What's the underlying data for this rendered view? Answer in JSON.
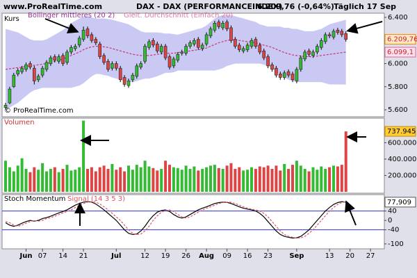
{
  "header": {
    "site": "www.ProRealTime.com",
    "instrument": "DAX - DAX (PERFORMANCEINDEX)",
    "quote": "6.209,76 (-0,64%)",
    "period": "Täglich 17 Sep"
  },
  "chart_data": [
    {
      "type": "candlestick",
      "title": "Kurs",
      "watermark": "© ProRealTime.com",
      "up_color": "#33bb33",
      "down_color": "#dd4444",
      "open": [
        5620,
        5660,
        5800,
        5910,
        5930,
        5950,
        6000,
        5960,
        5860,
        5900,
        5950,
        6000,
        6060,
        6020,
        6070,
        6010,
        6100,
        6130,
        6160,
        6210,
        6300,
        6250,
        6210,
        6170,
        6070,
        6020,
        5960,
        6000,
        5960,
        5880,
        5810,
        5860,
        5890,
        5970,
        6020,
        6140,
        6200,
        6170,
        6100,
        6150,
        6060,
        5980,
        6030,
        6090,
        6090,
        6150,
        6170,
        6210,
        6130,
        6170,
        6240,
        6290,
        6360,
        6310,
        6360,
        6310,
        6210,
        6160,
        6110,
        6120,
        6150,
        6210,
        6160,
        6110,
        6060,
        5990,
        5960,
        5910,
        5880,
        5930,
        5910,
        5850,
        5950,
        6040,
        6110,
        6070,
        6100,
        6140,
        6190,
        6250,
        6230,
        6290,
        6280,
        6260
      ],
      "high": [
        5660,
        5800,
        5920,
        5960,
        5980,
        6010,
        6020,
        5980,
        5910,
        5980,
        6030,
        6070,
        6080,
        6080,
        6090,
        6120,
        6160,
        6170,
        6240,
        6320,
        6320,
        6270,
        6230,
        6190,
        6090,
        6040,
        6020,
        6020,
        5980,
        5900,
        5870,
        5920,
        6000,
        6020,
        6170,
        6210,
        6220,
        6190,
        6170,
        6170,
        6080,
        6060,
        6100,
        6120,
        6170,
        6200,
        6220,
        6230,
        6180,
        6270,
        6320,
        6370,
        6380,
        6370,
        6380,
        6330,
        6230,
        6180,
        6150,
        6180,
        6220,
        6230,
        6180,
        6130,
        6080,
        6010,
        5980,
        5930,
        5940,
        5950,
        5930,
        5970,
        6070,
        6120,
        6130,
        6120,
        6170,
        6220,
        6270,
        6270,
        6300,
        6310,
        6300,
        6280
      ],
      "low": [
        5600,
        5650,
        5790,
        5890,
        5910,
        5930,
        5950,
        5820,
        5840,
        5880,
        5930,
        5980,
        6010,
        6000,
        5980,
        5990,
        6080,
        6110,
        6140,
        6190,
        6220,
        6180,
        6160,
        6040,
        5990,
        5930,
        5940,
        5940,
        5840,
        5800,
        5790,
        5840,
        5870,
        5950,
        6000,
        6120,
        6140,
        6090,
        6080,
        6030,
        5950,
        5960,
        6010,
        6070,
        6070,
        6130,
        6150,
        6120,
        6110,
        6150,
        6220,
        6270,
        6300,
        6290,
        6280,
        6180,
        6130,
        6100,
        6090,
        6100,
        6130,
        6130,
        6080,
        6030,
        5960,
        5930,
        5880,
        5860,
        5860,
        5880,
        5840,
        5830,
        5930,
        6020,
        6060,
        6050,
        6080,
        6120,
        6170,
        6220,
        6210,
        6250,
        6230,
        6190
      ],
      "close": [
        5640,
        5780,
        5900,
        5940,
        5960,
        5990,
        5970,
        5850,
        5890,
        5960,
        6010,
        6050,
        6030,
        6060,
        6000,
        6100,
        6140,
        6150,
        6220,
        6290,
        6240,
        6200,
        6180,
        6060,
        6010,
        5950,
        6000,
        5960,
        5860,
        5820,
        5850,
        5900,
        5980,
        6000,
        6150,
        6190,
        6160,
        6110,
        6150,
        6050,
        5970,
        6040,
        6080,
        6100,
        6150,
        6180,
        6200,
        6140,
        6160,
        6250,
        6300,
        6350,
        6320,
        6350,
        6300,
        6200,
        6150,
        6120,
        6130,
        6160,
        6200,
        6150,
        6100,
        6050,
        5980,
        5950,
        5900,
        5880,
        5920,
        5900,
        5860,
        5950,
        6050,
        6100,
        6080,
        6100,
        6150,
        6200,
        6250,
        6240,
        6280,
        6270,
        6250,
        6209.76
      ],
      "last_label": "6.209,76",
      "band": {
        "name": "Bollinger mittleres (20 2)",
        "color": "#c9c9f3",
        "upper": [
          6300,
          6290,
          6280,
          6270,
          6250,
          6230,
          6210,
          6200,
          6200,
          6200,
          6210,
          6230,
          6250,
          6270,
          6290,
          6320,
          6350,
          6370,
          6390,
          6410,
          6410,
          6400,
          6390,
          6390,
          6390,
          6385,
          6380,
          6370,
          6360,
          6350,
          6340,
          6320,
          6300,
          6280,
          6270,
          6270,
          6270,
          6270,
          6265,
          6260,
          6260,
          6255,
          6250,
          6260,
          6270,
          6280,
          6290,
          6300,
          6310,
          6330,
          6360,
          6390,
          6410,
          6420,
          6420,
          6420,
          6410,
          6400,
          6390,
          6380,
          6370,
          6360,
          6340,
          6330,
          6320,
          6320,
          6320,
          6320,
          6310,
          6310,
          6300,
          6300,
          6290,
          6280,
          6280,
          6280,
          6290,
          6300,
          6320,
          6340,
          6350,
          6360,
          6370,
          6380
        ],
        "lower": [
          5600,
          5620,
          5640,
          5660,
          5690,
          5720,
          5750,
          5770,
          5780,
          5790,
          5790,
          5790,
          5790,
          5790,
          5790,
          5790,
          5790,
          5800,
          5810,
          5830,
          5860,
          5890,
          5910,
          5910,
          5900,
          5895,
          5880,
          5870,
          5860,
          5850,
          5840,
          5840,
          5850,
          5860,
          5870,
          5870,
          5880,
          5890,
          5905,
          5920,
          5920,
          5925,
          5940,
          5940,
          5940,
          5940,
          5940,
          5940,
          5940,
          5940,
          5940,
          5940,
          5950,
          5960,
          5980,
          5990,
          6000,
          6000,
          6000,
          6000,
          6000,
          6000,
          6000,
          5990,
          5980,
          5960,
          5930,
          5900,
          5880,
          5860,
          5850,
          5840,
          5840,
          5840,
          5840,
          5840,
          5840,
          5840,
          5830,
          5820,
          5820,
          5820,
          5820,
          5818
        ]
      },
      "series": [
        {
          "name": "Gleit. Durchschnitt (Einfach 20)",
          "color": "#cc3377",
          "dashed": true,
          "last_label": "6.099,1",
          "values": [
            5950,
            5955,
            5960,
            5965,
            5970,
            5975,
            5980,
            5985,
            5990,
            5995,
            6000,
            6010,
            6020,
            6030,
            6040,
            6055,
            6070,
            6085,
            6100,
            6120,
            6135,
            6145,
            6150,
            6150,
            6145,
            6140,
            6130,
            6120,
            6110,
            6100,
            6090,
            6080,
            6075,
            6070,
            6070,
            6070,
            6075,
            6080,
            6085,
            6090,
            6090,
            6090,
            6095,
            6100,
            6105,
            6110,
            6115,
            6120,
            6125,
            6135,
            6150,
            6165,
            6180,
            6190,
            6200,
            6205,
            6205,
            6200,
            6195,
            6190,
            6185,
            6180,
            6170,
            6160,
            6150,
            6140,
            6125,
            6110,
            6095,
            6085,
            6075,
            6070,
            6065,
            6060,
            6060,
            6060,
            6065,
            6070,
            6075,
            6080,
            6085,
            6090,
            6095,
            6099.1
          ]
        }
      ],
      "ylim": [
        5540,
        6436
      ],
      "yticks": [
        {
          "value": 5600,
          "label": "5.600"
        },
        {
          "value": 5800,
          "label": "5.800"
        },
        {
          "value": 6000,
          "label": "6.000"
        },
        {
          "value": 6200,
          "label": "6.200"
        },
        {
          "value": 6400,
          "label": "6.400"
        }
      ]
    },
    {
      "type": "bar",
      "title": "Volumen",
      "last_label": "737.945",
      "values": [
        380000,
        300000,
        250000,
        320000,
        410000,
        280000,
        240000,
        300000,
        270000,
        350000,
        250000,
        280000,
        300000,
        240000,
        280000,
        330000,
        260000,
        270000,
        300000,
        870000,
        280000,
        300000,
        250000,
        300000,
        320000,
        280000,
        340000,
        270000,
        300000,
        250000,
        320000,
        270000,
        330000,
        300000,
        380000,
        310000,
        290000,
        260000,
        280000,
        380000,
        330000,
        300000,
        290000,
        270000,
        320000,
        280000,
        310000,
        260000,
        280000,
        300000,
        320000,
        330000,
        290000,
        280000,
        320000,
        350000,
        280000,
        300000,
        260000,
        270000,
        300000,
        280000,
        310000,
        300000,
        320000,
        280000,
        320000,
        260000,
        340000,
        280000,
        330000,
        380000,
        320000,
        280000,
        250000,
        300000,
        270000,
        310000,
        280000,
        300000,
        320000,
        310000,
        330000,
        737945
      ],
      "ylim": [
        0,
        900000
      ],
      "yticks": [
        {
          "value": 200000,
          "label": "200.000"
        },
        {
          "value": 400000,
          "label": "400.000"
        },
        {
          "value": 600000,
          "label": "600.000"
        }
      ]
    },
    {
      "type": "line",
      "last_label": "77,909",
      "series": [
        {
          "name": "Stoch Momentum",
          "color": "#000000",
          "dashed": false,
          "values": [
            -10,
            -20,
            -25,
            -20,
            -12,
            -5,
            0,
            -3,
            0,
            8,
            12,
            18,
            25,
            32,
            38,
            45,
            55,
            65,
            72,
            78,
            80,
            78,
            70,
            58,
            45,
            30,
            15,
            0,
            -20,
            -40,
            -55,
            -60,
            -58,
            -45,
            -25,
            0,
            20,
            35,
            42,
            45,
            38,
            25,
            15,
            10,
            15,
            25,
            35,
            45,
            52,
            58,
            65,
            72,
            76,
            78,
            77,
            72,
            65,
            58,
            52,
            48,
            45,
            40,
            30,
            15,
            -5,
            -25,
            -45,
            -60,
            -68,
            -72,
            -75,
            -74,
            -68,
            -55,
            -40,
            -20,
            0,
            20,
            40,
            55,
            68,
            76,
            80,
            77.909
          ]
        },
        {
          "name": "Signal (14 3 5 3)",
          "color": "#dd5566",
          "dashed": true,
          "values": [
            -5,
            -10,
            -20,
            -25,
            -20,
            -12,
            -5,
            0,
            -3,
            0,
            8,
            12,
            18,
            25,
            32,
            38,
            45,
            55,
            65,
            72,
            78,
            80,
            78,
            70,
            58,
            45,
            30,
            15,
            0,
            -20,
            -40,
            -55,
            -60,
            -58,
            -45,
            -25,
            0,
            20,
            35,
            42,
            45,
            38,
            25,
            15,
            10,
            15,
            25,
            35,
            45,
            52,
            58,
            65,
            72,
            76,
            78,
            77,
            72,
            65,
            58,
            52,
            48,
            45,
            40,
            30,
            15,
            -5,
            -25,
            -45,
            -60,
            -68,
            -72,
            -75,
            -74,
            -68,
            -55,
            -40,
            -20,
            0,
            20,
            40,
            55,
            68,
            76,
            80
          ]
        }
      ],
      "levels": [
        40,
        -40
      ],
      "level_color": "#3333cc",
      "ylim": [
        -121,
        110
      ],
      "yticks": [
        40,
        0,
        -40,
        -100
      ],
      "xticks": [
        {
          "value": 5,
          "label": "Jun"
        },
        {
          "value": 9,
          "label": "07"
        },
        {
          "value": 14,
          "label": "14"
        },
        {
          "value": 19,
          "label": "21"
        },
        {
          "value": 27,
          "label": "Jul"
        },
        {
          "value": 34,
          "label": "12"
        },
        {
          "value": 39,
          "label": "19"
        },
        {
          "value": 44,
          "label": "26"
        },
        {
          "value": 49,
          "label": "Aug"
        },
        {
          "value": 54,
          "label": "09"
        },
        {
          "value": 59,
          "label": "16"
        },
        {
          "value": 64,
          "label": "23"
        },
        {
          "value": 71,
          "label": "Sep"
        },
        {
          "value": 79,
          "label": "13"
        },
        {
          "value": 84,
          "label": "20"
        },
        {
          "value": 89,
          "label": "27"
        }
      ]
    }
  ]
}
